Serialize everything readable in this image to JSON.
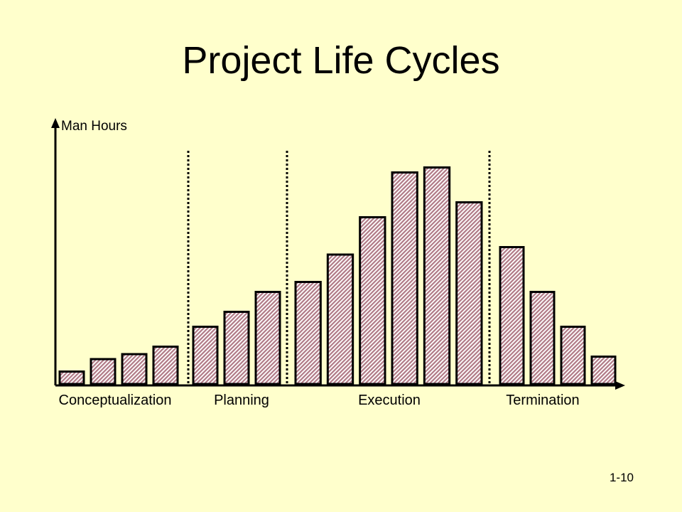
{
  "slide": {
    "title": "Project Life Cycles",
    "page_number": "1-10",
    "background_color": "#FFFFCC"
  },
  "chart_data": {
    "type": "bar",
    "title": "",
    "ylabel": "Man Hours",
    "xlabel": "",
    "ylim": [
      0,
      100
    ],
    "grid": false,
    "legend": "none",
    "bar_fill": "hatched",
    "bar_color": "#C8A0A8",
    "phases": [
      {
        "name": "Conceptualization",
        "values": [
          5,
          10,
          12,
          15
        ]
      },
      {
        "name": "Planning",
        "values": [
          23,
          29,
          37
        ]
      },
      {
        "name": "Execution",
        "values": [
          41,
          52,
          67,
          85,
          87,
          73
        ]
      },
      {
        "name": "Termination",
        "values": [
          55,
          37,
          23,
          11
        ]
      }
    ]
  }
}
